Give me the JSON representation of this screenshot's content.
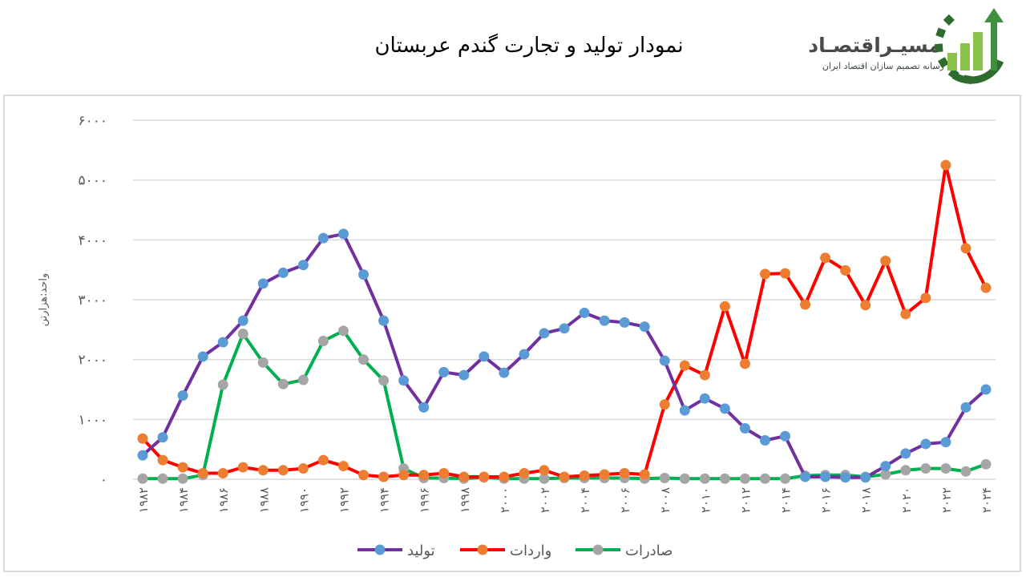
{
  "header": {
    "title": "نمودار تولید و تجارت گندم عربستان"
  },
  "logo": {
    "name": "مسیـراقتصـاد",
    "tagline": "رسانه تصمیم سازان اقتصاد ایران",
    "colors": {
      "gear": "#2e6b2e",
      "bars": "#8bc34a",
      "arrow": "#3f8f3f"
    }
  },
  "chart_data": {
    "type": "line",
    "title": "نمودار تولید و تجارت گندم عربستان",
    "ylabel": "واحد:هزارتن",
    "xlabel": "",
    "ylim": [
      0,
      6000
    ],
    "yticks": [
      0,
      1000,
      2000,
      3000,
      4000,
      5000,
      6000
    ],
    "ytick_labels": [
      "۰",
      "۱۰۰۰",
      "۲۰۰۰",
      "۳۰۰۰",
      "۴۰۰۰",
      "۵۰۰۰",
      "۶۰۰۰"
    ],
    "grid": true,
    "legend_position": "bottom",
    "x": [
      1982,
      1983,
      1984,
      1985,
      1986,
      1987,
      1988,
      1989,
      1990,
      1991,
      1992,
      1993,
      1994,
      1995,
      1996,
      1997,
      1998,
      1999,
      2000,
      2001,
      2002,
      2003,
      2004,
      2005,
      2006,
      2007,
      2008,
      2009,
      2010,
      2011,
      2012,
      2013,
      2014,
      2015,
      2016,
      2017,
      2018,
      2019,
      2020,
      2021,
      2022,
      2023,
      2024
    ],
    "x_tick_labels": [
      "۱۹۸۲",
      "۱۹۸۴",
      "۱۹۸۶",
      "۱۹۸۸",
      "۱۹۹۰",
      "۱۹۹۲",
      "۱۹۹۴",
      "۱۹۹۶",
      "۱۹۹۸",
      "۲۰۰۰",
      "۲۰۰۲",
      "۲۰۰۴",
      "۲۰۰۶",
      "۲۰۰۸",
      "۲۰۱۰",
      "۲۰۱۲",
      "۲۰۱۴",
      "۲۰۱۶",
      "۲۰۱۸",
      "۲۰۲۰",
      "۲۰۲۲",
      "۲۰۲۴"
    ],
    "series": [
      {
        "name": "تولید",
        "line_color": "#7030a0",
        "marker_color": "#5b9bd5",
        "values": [
          400,
          700,
          1400,
          2050,
          2290,
          2650,
          3270,
          3450,
          3580,
          4030,
          4100,
          3420,
          2650,
          1650,
          1200,
          1790,
          1740,
          2050,
          1780,
          2090,
          2440,
          2520,
          2780,
          2650,
          2620,
          2550,
          1980,
          1150,
          1350,
          1180,
          850,
          650,
          720,
          40,
          40,
          30,
          30,
          220,
          430,
          590,
          620,
          1200,
          1500
        ]
      },
      {
        "name": "واردات",
        "line_color": "#ff0000",
        "marker_color": "#ed7d31",
        "values": [
          680,
          320,
          200,
          100,
          100,
          200,
          150,
          150,
          180,
          320,
          220,
          70,
          40,
          70,
          70,
          100,
          40,
          40,
          40,
          100,
          150,
          40,
          60,
          80,
          100,
          80,
          1250,
          1900,
          1740,
          2890,
          1930,
          3430,
          3440,
          2920,
          3700,
          3490,
          2910,
          3650,
          2760,
          3030,
          5250,
          3860,
          3200
        ]
      },
      {
        "name": "صادرات",
        "line_color": "#00b050",
        "marker_color": "#a5a5a5",
        "values": [
          10,
          10,
          10,
          70,
          1580,
          2430,
          1950,
          1590,
          1660,
          2310,
          2480,
          2000,
          1650,
          180,
          20,
          20,
          10,
          30,
          10,
          10,
          10,
          20,
          20,
          20,
          20,
          10,
          20,
          10,
          10,
          10,
          10,
          10,
          10,
          60,
          70,
          70,
          40,
          80,
          150,
          180,
          180,
          130,
          250
        ]
      }
    ]
  }
}
